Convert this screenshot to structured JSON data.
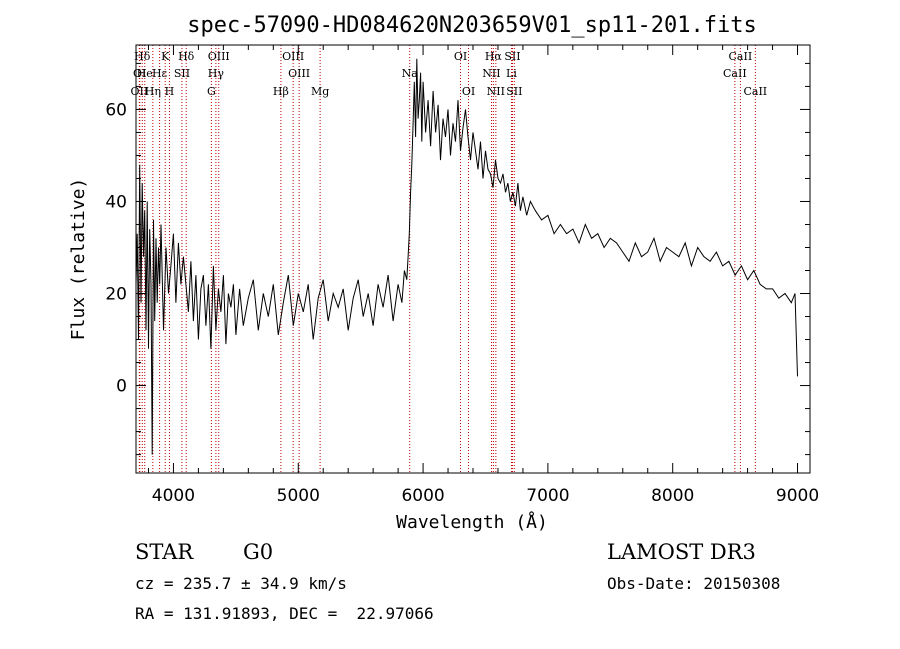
{
  "chart_data": {
    "type": "line",
    "title": "spec-57090-HD084620N203659V01_sp11-201.fits",
    "xlabel": "Wavelength (Å)",
    "ylabel": "Flux (relative)",
    "xlim": [
      3700,
      9100
    ],
    "ylim": [
      -19,
      74
    ],
    "xticks": [
      4000,
      5000,
      6000,
      7000,
      8000,
      9000
    ],
    "yticks": [
      0,
      20,
      40,
      60
    ],
    "grid": false,
    "series": [
      {
        "x": [
          3700,
          3710,
          3720,
          3730,
          3740,
          3750,
          3760,
          3770,
          3780,
          3790,
          3800,
          3810,
          3820,
          3830,
          3840,
          3850,
          3860,
          3870,
          3880,
          3890,
          3900,
          3920,
          3940,
          3960,
          3980,
          4000,
          4020,
          4040,
          4060,
          4080,
          4100,
          4120,
          4140,
          4160,
          4180,
          4200,
          4220,
          4240,
          4260,
          4280,
          4300,
          4320,
          4340,
          4360,
          4380,
          4400,
          4420,
          4440,
          4460,
          4480,
          4500,
          4530,
          4560,
          4600,
          4640,
          4680,
          4720,
          4760,
          4800,
          4840,
          4880,
          4920,
          4960,
          5000,
          5040,
          5080,
          5120,
          5160,
          5200,
          5240,
          5280,
          5320,
          5360,
          5400,
          5440,
          5480,
          5520,
          5560,
          5600,
          5640,
          5680,
          5720,
          5760,
          5800,
          5830,
          5850,
          5870,
          5880,
          5890,
          5900,
          5910,
          5920,
          5930,
          5940,
          5950,
          5960,
          5970,
          5980,
          5990,
          6000,
          6020,
          6040,
          6060,
          6080,
          6100,
          6120,
          6140,
          6160,
          6180,
          6200,
          6220,
          6240,
          6260,
          6280,
          6300,
          6320,
          6340,
          6360,
          6380,
          6400,
          6420,
          6440,
          6460,
          6480,
          6500,
          6520,
          6540,
          6560,
          6580,
          6600,
          6620,
          6640,
          6660,
          6680,
          6700,
          6720,
          6740,
          6760,
          6780,
          6800,
          6830,
          6860,
          6900,
          6950,
          7000,
          7050,
          7100,
          7150,
          7200,
          7250,
          7300,
          7350,
          7400,
          7450,
          7500,
          7550,
          7600,
          7650,
          7700,
          7750,
          7800,
          7850,
          7900,
          7950,
          8000,
          8050,
          8100,
          8150,
          8200,
          8250,
          8300,
          8350,
          8400,
          8450,
          8500,
          8550,
          8600,
          8650,
          8700,
          8750,
          8800,
          8850,
          8900,
          8950,
          8980,
          9000
        ],
        "y": [
          22,
          33,
          10,
          48,
          18,
          44,
          28,
          38,
          12,
          40,
          8,
          34,
          22,
          -15,
          36,
          14,
          32,
          18,
          30,
          22,
          35,
          12,
          30,
          20,
          26,
          33,
          18,
          31,
          22,
          28,
          22,
          16,
          27,
          14,
          24,
          10,
          21,
          24,
          13,
          22,
          8,
          26,
          12,
          21,
          16,
          24,
          9,
          20,
          17,
          22,
          11,
          21,
          13,
          19,
          23,
          12,
          20,
          15,
          22,
          11,
          18,
          24,
          13,
          20,
          16,
          22,
          10,
          19,
          23,
          14,
          20,
          17,
          21,
          12,
          19,
          23,
          15,
          20,
          13,
          22,
          17,
          24,
          14,
          22,
          18,
          25,
          23,
          28,
          33,
          42,
          48,
          57,
          66,
          54,
          71,
          58,
          62,
          68,
          53,
          66,
          55,
          62,
          52,
          64,
          55,
          61,
          49,
          58,
          54,
          60,
          50,
          57,
          53,
          62,
          51,
          56,
          60,
          54,
          49,
          55,
          51,
          47,
          53,
          45,
          51,
          47,
          46,
          43,
          49,
          45,
          44,
          46,
          42,
          44,
          40,
          42,
          39,
          44,
          38,
          41,
          37,
          40,
          38,
          36,
          37,
          33,
          35,
          33,
          34,
          31,
          35,
          32,
          33,
          30,
          32,
          31,
          29,
          27,
          31,
          28,
          29,
          32,
          27,
          30,
          29,
          28,
          31,
          26,
          30,
          28,
          27,
          29,
          26,
          27,
          24,
          26,
          23,
          25,
          22,
          21,
          21,
          19,
          20,
          18,
          20,
          2
        ]
      }
    ],
    "annotations": [
      {
        "label": "Hδ",
        "x": 3750,
        "row": 1
      },
      {
        "label": "OI",
        "x": 3730,
        "row": 2
      },
      {
        "label": "OII",
        "x": 3727,
        "row": 3
      },
      {
        "label": "He",
        "x": 3770,
        "row": 2
      },
      {
        "label": "Hη",
        "x": 3835,
        "row": 3
      },
      {
        "label": "K",
        "x": 3934,
        "row": 1
      },
      {
        "label": "Hε",
        "x": 3889,
        "row": 2
      },
      {
        "label": "SII",
        "x": 4068,
        "row": 2
      },
      {
        "label": "H",
        "x": 3968,
        "row": 3
      },
      {
        "label": "Hδ",
        "x": 4102,
        "row": 1
      },
      {
        "label": "OIII",
        "x": 4363,
        "row": 1
      },
      {
        "label": "Hγ",
        "x": 4340,
        "row": 2
      },
      {
        "label": "G",
        "x": 4304,
        "row": 3
      },
      {
        "label": "Hβ",
        "x": 4861,
        "row": 3
      },
      {
        "label": "OIII",
        "x": 4959,
        "row": 1
      },
      {
        "label": "OIII",
        "x": 5007,
        "row": 2
      },
      {
        "label": "Mg",
        "x": 5175,
        "row": 3
      },
      {
        "label": "Na",
        "x": 5893,
        "row": 2
      },
      {
        "label": "OI",
        "x": 6300,
        "row": 1
      },
      {
        "label": "OI",
        "x": 6364,
        "row": 3
      },
      {
        "label": "Hα",
        "x": 6563,
        "row": 1
      },
      {
        "label": "NII",
        "x": 6548,
        "row": 2
      },
      {
        "label": "NII",
        "x": 6583,
        "row": 3
      },
      {
        "label": "SII",
        "x": 6716,
        "row": 1
      },
      {
        "label": "Li",
        "x": 6708,
        "row": 2
      },
      {
        "label": "SII",
        "x": 6731,
        "row": 3
      },
      {
        "label": "CaII",
        "x": 8542,
        "row": 1
      },
      {
        "label": "CaII",
        "x": 8498,
        "row": 2
      },
      {
        "label": "CaII",
        "x": 8662,
        "row": 3
      }
    ],
    "colors": {
      "spectrum": "#000000",
      "line_markers": "#c00000",
      "axes": "#000000"
    }
  },
  "info": {
    "object_class": "STAR",
    "subclass": "G0",
    "survey": "LAMOST DR3",
    "redshift": "cz = 235.7 ± 34.9 km/s",
    "obs_date": "Obs-Date: 20150308",
    "coords": "RA = 131.91893, DEC =  22.97066"
  }
}
